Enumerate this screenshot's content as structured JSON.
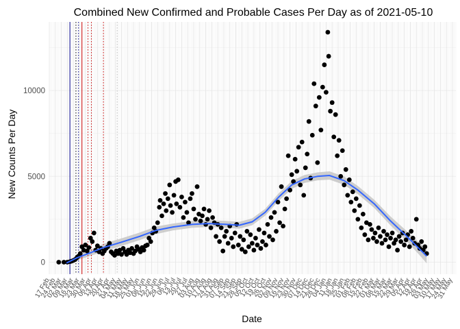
{
  "chart_data": {
    "type": "scatter",
    "title": "Combined New Confirmed and Probable Cases Per Day as of 2021-05-10",
    "xlabel": "Date",
    "ylabel": "New Counts Per Day",
    "xlim": [
      "2020-02-17",
      "2021-06-04"
    ],
    "ylim": [
      -700,
      14000
    ],
    "yticks": [
      0,
      5000,
      10000
    ],
    "ytick_labels": [
      "0",
      "5000",
      "10000"
    ],
    "xtick_labels": [
      "17 Feb",
      "24 Feb",
      "02 Mar",
      "09 Mar",
      "16 Mar",
      "23 Mar",
      "30 Mar",
      "06 Apr",
      "13 Apr",
      "20 Apr",
      "27 Apr",
      "04 May",
      "11 May",
      "18 May",
      "25 May",
      "01 Jun",
      "08 Jun",
      "15 Jun",
      "22 Jun",
      "29 Jun",
      "06 Jul",
      "13 Jul",
      "20 Jul",
      "27 Jul",
      "03 Aug",
      "10 Aug",
      "17 Aug",
      "24 Aug",
      "31 Aug",
      "07 Sep",
      "14 Sep",
      "21 Sep",
      "28 Sep",
      "05 Oct",
      "12 Oct",
      "19 Oct",
      "26 Oct",
      "02 Nov",
      "09 Nov",
      "16 Nov",
      "23 Nov",
      "30 Nov",
      "07 Dec",
      "14 Dec",
      "21 Dec",
      "28 Dec",
      "04 Jan",
      "11 Jan",
      "18 Jan",
      "25 Jan",
      "01 Feb",
      "08 Feb",
      "15 Feb",
      "22 Feb",
      "01 Mar",
      "08 Mar",
      "15 Mar",
      "22 Mar",
      "29 Mar",
      "05 Apr",
      "12 Apr",
      "19 Apr",
      "26 Apr",
      "03 May",
      "10 May",
      "17 May",
      "24 May",
      "31 May"
    ],
    "grid": true,
    "vertical_lines": [
      {
        "date": "2020-03-12",
        "color": "#00008b",
        "style": "solid"
      },
      {
        "date": "2020-03-19",
        "color": "#000000",
        "style": "dotted"
      },
      {
        "date": "2020-03-22",
        "color": "#00008b",
        "style": "dotted"
      },
      {
        "date": "2020-03-26",
        "color": "#cc0000",
        "style": "solid"
      },
      {
        "date": "2020-04-02",
        "color": "#cc0000",
        "style": "dotted"
      },
      {
        "date": "2020-04-06",
        "color": "#cc0000",
        "style": "dotted"
      },
      {
        "date": "2020-04-20",
        "color": "#cc0000",
        "style": "dotted"
      },
      {
        "date": "2020-05-06",
        "color": "#bbbbbb",
        "style": "dotted"
      }
    ],
    "series": [
      {
        "type": "scatter",
        "color": "#000000",
        "points": [
          [
            "2020-02-28",
            0
          ],
          [
            "2020-03-05",
            0
          ],
          [
            "2020-03-09",
            0
          ],
          [
            "2020-03-12",
            30
          ],
          [
            "2020-03-14",
            60
          ],
          [
            "2020-03-16",
            100
          ],
          [
            "2020-03-18",
            150
          ],
          [
            "2020-03-20",
            250
          ],
          [
            "2020-03-22",
            350
          ],
          [
            "2020-03-24",
            500
          ],
          [
            "2020-03-26",
            900
          ],
          [
            "2020-03-28",
            700
          ],
          [
            "2020-03-30",
            1000
          ],
          [
            "2020-04-01",
            650
          ],
          [
            "2020-04-03",
            850
          ],
          [
            "2020-04-05",
            1400
          ],
          [
            "2020-04-07",
            1200
          ],
          [
            "2020-04-09",
            1700
          ],
          [
            "2020-04-11",
            700
          ],
          [
            "2020-04-13",
            950
          ],
          [
            "2020-04-15",
            600
          ],
          [
            "2020-04-17",
            800
          ],
          [
            "2020-04-19",
            500
          ],
          [
            "2020-04-21",
            650
          ],
          [
            "2020-04-23",
            800
          ],
          [
            "2020-04-25",
            900
          ],
          [
            "2020-04-27",
            1100
          ],
          [
            "2020-04-29",
            600
          ],
          [
            "2020-05-01",
            500
          ],
          [
            "2020-05-03",
            400
          ],
          [
            "2020-05-05",
            650
          ],
          [
            "2020-05-07",
            500
          ],
          [
            "2020-05-09",
            700
          ],
          [
            "2020-05-11",
            450
          ],
          [
            "2020-05-13",
            800
          ],
          [
            "2020-05-15",
            600
          ],
          [
            "2020-05-17",
            450
          ],
          [
            "2020-05-19",
            700
          ],
          [
            "2020-05-21",
            550
          ],
          [
            "2020-05-23",
            800
          ],
          [
            "2020-05-25",
            500
          ],
          [
            "2020-05-27",
            650
          ],
          [
            "2020-05-29",
            900
          ],
          [
            "2020-05-31",
            750
          ],
          [
            "2020-06-02",
            600
          ],
          [
            "2020-06-04",
            850
          ],
          [
            "2020-06-06",
            700
          ],
          [
            "2020-06-08",
            950
          ],
          [
            "2020-06-10",
            1000
          ],
          [
            "2020-06-12",
            1400
          ],
          [
            "2020-06-14",
            1200
          ],
          [
            "2020-06-16",
            1700
          ],
          [
            "2020-06-18",
            2000
          ],
          [
            "2020-06-20",
            1800
          ],
          [
            "2020-06-22",
            2300
          ],
          [
            "2020-06-24",
            3200
          ],
          [
            "2020-06-25",
            3600
          ],
          [
            "2020-06-27",
            2700
          ],
          [
            "2020-06-29",
            3400
          ],
          [
            "2020-07-01",
            4000
          ],
          [
            "2020-07-02",
            3000
          ],
          [
            "2020-07-04",
            3700
          ],
          [
            "2020-07-06",
            4500
          ],
          [
            "2020-07-07",
            3300
          ],
          [
            "2020-07-09",
            2900
          ],
          [
            "2020-07-11",
            3900
          ],
          [
            "2020-07-13",
            4700
          ],
          [
            "2020-07-14",
            3400
          ],
          [
            "2020-07-16",
            4800
          ],
          [
            "2020-07-18",
            3200
          ],
          [
            "2020-07-20",
            3800
          ],
          [
            "2020-07-22",
            2600
          ],
          [
            "2020-07-24",
            3500
          ],
          [
            "2020-07-26",
            2900
          ],
          [
            "2020-07-28",
            2300
          ],
          [
            "2020-07-30",
            3700
          ],
          [
            "2020-08-01",
            4000
          ],
          [
            "2020-08-03",
            3100
          ],
          [
            "2020-08-05",
            2500
          ],
          [
            "2020-08-07",
            4400
          ],
          [
            "2020-08-09",
            2800
          ],
          [
            "2020-08-11",
            2400
          ],
          [
            "2020-08-13",
            2700
          ],
          [
            "2020-08-15",
            3100
          ],
          [
            "2020-08-17",
            2200
          ],
          [
            "2020-08-19",
            2500
          ],
          [
            "2020-08-21",
            3000
          ],
          [
            "2020-08-23",
            2000
          ],
          [
            "2020-08-25",
            2600
          ],
          [
            "2020-08-27",
            2300
          ],
          [
            "2020-08-29",
            1500
          ],
          [
            "2020-08-31",
            2200
          ],
          [
            "2020-09-02",
            1200
          ],
          [
            "2020-09-04",
            2000
          ],
          [
            "2020-09-06",
            650
          ],
          [
            "2020-09-08",
            1500
          ],
          [
            "2020-09-10",
            1800
          ],
          [
            "2020-09-12",
            1100
          ],
          [
            "2020-09-14",
            2100
          ],
          [
            "2020-09-16",
            1400
          ],
          [
            "2020-09-18",
            900
          ],
          [
            "2020-09-20",
            1700
          ],
          [
            "2020-09-22",
            2200
          ],
          [
            "2020-09-24",
            1000
          ],
          [
            "2020-09-26",
            1500
          ],
          [
            "2020-09-28",
            750
          ],
          [
            "2020-09-30",
            1300
          ],
          [
            "2020-10-02",
            600
          ],
          [
            "2020-10-04",
            1800
          ],
          [
            "2020-10-06",
            900
          ],
          [
            "2020-10-08",
            1600
          ],
          [
            "2020-10-10",
            1100
          ],
          [
            "2020-10-12",
            700
          ],
          [
            "2020-10-14",
            1400
          ],
          [
            "2020-10-16",
            1000
          ],
          [
            "2020-10-18",
            1900
          ],
          [
            "2020-10-20",
            800
          ],
          [
            "2020-10-22",
            1200
          ],
          [
            "2020-10-24",
            1700
          ],
          [
            "2020-10-26",
            1000
          ],
          [
            "2020-10-28",
            2200
          ],
          [
            "2020-10-30",
            1500
          ],
          [
            "2020-11-01",
            2600
          ],
          [
            "2020-11-03",
            1300
          ],
          [
            "2020-11-05",
            2900
          ],
          [
            "2020-11-07",
            1800
          ],
          [
            "2020-11-09",
            3500
          ],
          [
            "2020-11-11",
            2300
          ],
          [
            "2020-11-13",
            4400
          ],
          [
            "2020-11-15",
            2100
          ],
          [
            "2020-11-17",
            3100
          ],
          [
            "2020-11-19",
            3700
          ],
          [
            "2020-11-21",
            6200
          ],
          [
            "2020-11-23",
            4200
          ],
          [
            "2020-11-25",
            5100
          ],
          [
            "2020-11-27",
            4700
          ],
          [
            "2020-11-29",
            6000
          ],
          [
            "2020-12-01",
            5300
          ],
          [
            "2020-12-03",
            6700
          ],
          [
            "2020-12-05",
            4500
          ],
          [
            "2020-12-07",
            7000
          ],
          [
            "2020-12-09",
            3900
          ],
          [
            "2020-12-11",
            5500
          ],
          [
            "2020-12-13",
            6300
          ],
          [
            "2020-12-15",
            8200
          ],
          [
            "2020-12-17",
            4900
          ],
          [
            "2020-12-19",
            7400
          ],
          [
            "2020-12-21",
            10400
          ],
          [
            "2020-12-23",
            9100
          ],
          [
            "2020-12-25",
            5800
          ],
          [
            "2020-12-27",
            9600
          ],
          [
            "2020-12-29",
            7700
          ],
          [
            "2020-12-31",
            10200
          ],
          [
            "2021-01-02",
            11500
          ],
          [
            "2021-01-04",
            9900
          ],
          [
            "2021-01-06",
            13400
          ],
          [
            "2021-01-07",
            12000
          ],
          [
            "2021-01-09",
            8800
          ],
          [
            "2021-01-11",
            9300
          ],
          [
            "2021-01-13",
            7300
          ],
          [
            "2021-01-15",
            8600
          ],
          [
            "2021-01-17",
            6200
          ],
          [
            "2021-01-19",
            7100
          ],
          [
            "2021-01-21",
            5000
          ],
          [
            "2021-01-23",
            6500
          ],
          [
            "2021-01-25",
            4500
          ],
          [
            "2021-01-27",
            5400
          ],
          [
            "2021-01-29",
            3900
          ],
          [
            "2021-01-31",
            4800
          ],
          [
            "2021-02-02",
            3500
          ],
          [
            "2021-02-04",
            4100
          ],
          [
            "2021-02-06",
            3000
          ],
          [
            "2021-02-08",
            3700
          ],
          [
            "2021-02-10",
            2500
          ],
          [
            "2021-02-12",
            3300
          ],
          [
            "2021-02-14",
            2000
          ],
          [
            "2021-02-16",
            2800
          ],
          [
            "2021-02-18",
            1600
          ],
          [
            "2021-02-20",
            2300
          ],
          [
            "2021-02-22",
            1300
          ],
          [
            "2021-02-24",
            2200
          ],
          [
            "2021-02-26",
            1900
          ],
          [
            "2021-02-28",
            1400
          ],
          [
            "2021-03-02",
            1700
          ],
          [
            "2021-03-04",
            1200
          ],
          [
            "2021-03-06",
            2000
          ],
          [
            "2021-03-08",
            1500
          ],
          [
            "2021-03-10",
            1100
          ],
          [
            "2021-03-12",
            1800
          ],
          [
            "2021-03-14",
            1300
          ],
          [
            "2021-03-16",
            1600
          ],
          [
            "2021-03-18",
            900
          ],
          [
            "2021-03-20",
            1400
          ],
          [
            "2021-03-22",
            1700
          ],
          [
            "2021-03-24",
            1100
          ],
          [
            "2021-03-26",
            1300
          ],
          [
            "2021-03-28",
            700
          ],
          [
            "2021-03-30",
            1500
          ],
          [
            "2021-04-01",
            1200
          ],
          [
            "2021-04-03",
            1700
          ],
          [
            "2021-04-05",
            1000
          ],
          [
            "2021-04-07",
            1300
          ],
          [
            "2021-04-09",
            1600
          ],
          [
            "2021-04-11",
            900
          ],
          [
            "2021-04-13",
            1800
          ],
          [
            "2021-04-15",
            1400
          ],
          [
            "2021-04-17",
            1100
          ],
          [
            "2021-04-19",
            2500
          ],
          [
            "2021-04-21",
            1000
          ],
          [
            "2021-04-23",
            800
          ],
          [
            "2021-04-25",
            1200
          ],
          [
            "2021-04-27",
            700
          ],
          [
            "2021-04-29",
            900
          ],
          [
            "2021-05-01",
            500
          ]
        ]
      },
      {
        "type": "smooth",
        "color": "#3366ff",
        "band_color": "#bfbfbf",
        "points": [
          [
            "2020-03-08",
            -50,
            50
          ],
          [
            "2020-03-20",
            250,
            150
          ],
          [
            "2020-04-05",
            550,
            180
          ],
          [
            "2020-04-20",
            850,
            220
          ],
          [
            "2020-05-10",
            1150,
            220
          ],
          [
            "2020-06-01",
            1500,
            220
          ],
          [
            "2020-06-20",
            1850,
            220
          ],
          [
            "2020-07-10",
            2050,
            200
          ],
          [
            "2020-08-01",
            2200,
            200
          ],
          [
            "2020-08-20",
            2250,
            200
          ],
          [
            "2020-09-10",
            2200,
            200
          ],
          [
            "2020-09-25",
            2150,
            200
          ],
          [
            "2020-10-10",
            2350,
            200
          ],
          [
            "2020-10-25",
            2900,
            200
          ],
          [
            "2020-11-10",
            3800,
            220
          ],
          [
            "2020-11-25",
            4500,
            230
          ],
          [
            "2020-12-10",
            4850,
            230
          ],
          [
            "2020-12-25",
            5000,
            230
          ],
          [
            "2021-01-08",
            5050,
            240
          ],
          [
            "2021-01-25",
            4750,
            240
          ],
          [
            "2021-02-10",
            4200,
            240
          ],
          [
            "2021-03-01",
            3400,
            240
          ],
          [
            "2021-03-20",
            2400,
            260
          ],
          [
            "2021-04-08",
            1500,
            300
          ],
          [
            "2021-04-22",
            800,
            350
          ],
          [
            "2021-05-01",
            350,
            420
          ]
        ]
      }
    ]
  }
}
